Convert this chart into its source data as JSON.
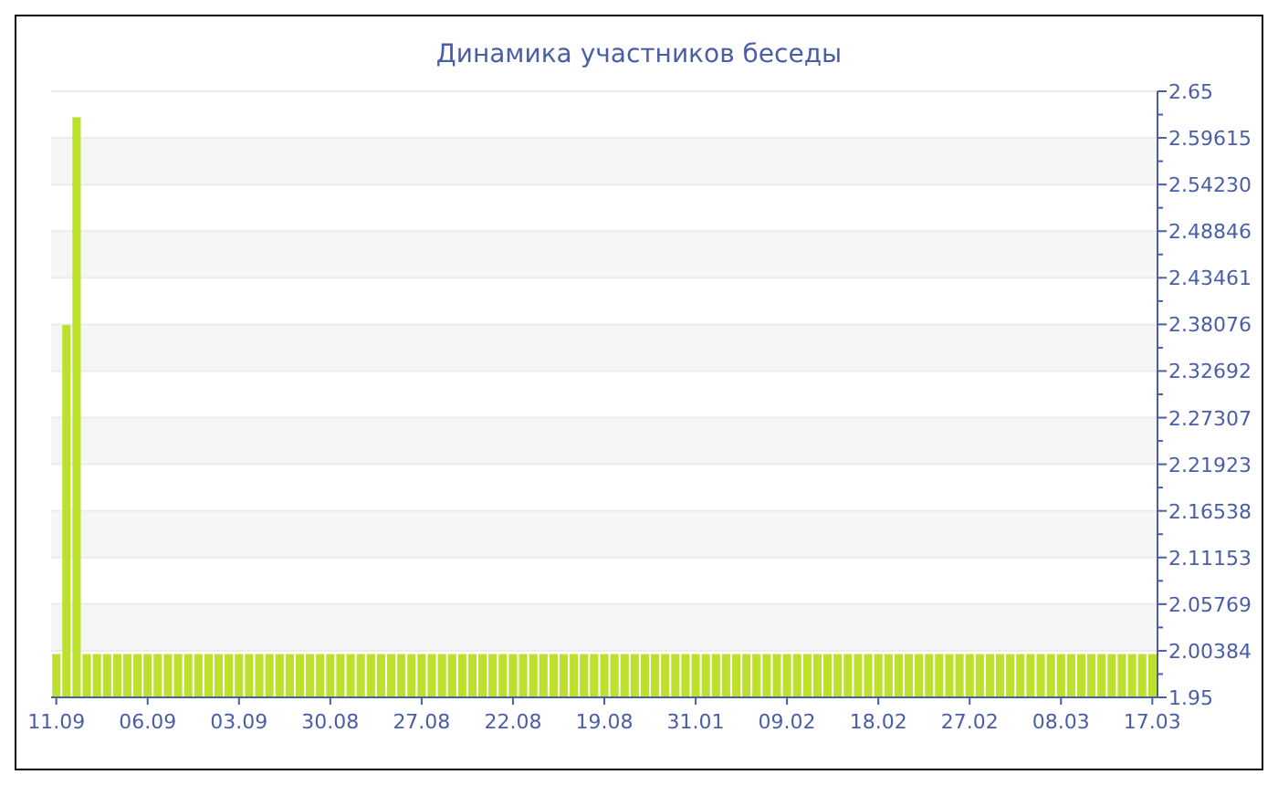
{
  "chart_data": {
    "type": "bar",
    "title": "Динамика участников беседы",
    "categories": [
      "11.09",
      null,
      null,
      null,
      null,
      null,
      null,
      null,
      null,
      "06.09",
      null,
      null,
      null,
      null,
      null,
      null,
      null,
      null,
      "03.09",
      null,
      null,
      null,
      null,
      null,
      null,
      null,
      null,
      "30.08",
      null,
      null,
      null,
      null,
      null,
      null,
      null,
      null,
      "27.08",
      null,
      null,
      null,
      null,
      null,
      null,
      null,
      null,
      "22.08",
      null,
      null,
      null,
      null,
      null,
      null,
      null,
      null,
      "19.08",
      null,
      null,
      null,
      null,
      null,
      null,
      null,
      null,
      "31.01",
      null,
      null,
      null,
      null,
      null,
      null,
      null,
      null,
      "09.02",
      null,
      null,
      null,
      null,
      null,
      null,
      null,
      null,
      "18.02",
      null,
      null,
      null,
      null,
      null,
      null,
      null,
      null,
      "27.02",
      null,
      null,
      null,
      null,
      null,
      null,
      null,
      null,
      "08.03",
      null,
      null,
      null,
      null,
      null,
      null,
      null,
      null,
      "17.03"
    ],
    "values": [
      2,
      2.38,
      2.62,
      2,
      2,
      2,
      2,
      2,
      2,
      2,
      2,
      2,
      2,
      2,
      2,
      2,
      2,
      2,
      2,
      2,
      2,
      2,
      2,
      2,
      2,
      2,
      2,
      2,
      2,
      2,
      2,
      2,
      2,
      2,
      2,
      2,
      2,
      2,
      2,
      2,
      2,
      2,
      2,
      2,
      2,
      2,
      2,
      2,
      2,
      2,
      2,
      2,
      2,
      2,
      2,
      2,
      2,
      2,
      2,
      2,
      2,
      2,
      2,
      2,
      2,
      2,
      2,
      2,
      2,
      2,
      2,
      2,
      2,
      2,
      2,
      2,
      2,
      2,
      2,
      2,
      2,
      2,
      2,
      2,
      2,
      2,
      2,
      2,
      2,
      2,
      2,
      2,
      2,
      2,
      2,
      2,
      2,
      2,
      2,
      2,
      2,
      2,
      2,
      2,
      2,
      2,
      2,
      2,
      2
    ],
    "color": "#bde02c",
    "ylim": [
      1.95,
      2.65
    ],
    "yticks": [
      1.95,
      2.00384,
      2.05769,
      2.11153,
      2.16538,
      2.21923,
      2.27307,
      2.32692,
      2.38076,
      2.43461,
      2.48846,
      {
        "value": 2.5423,
        "label": "2.54230"
      },
      2.59615,
      2.65
    ],
    "grid": "y"
  }
}
